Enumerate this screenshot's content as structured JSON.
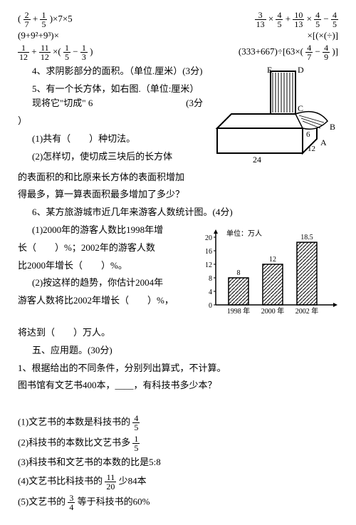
{
  "expr": {
    "e1a": "(",
    "e1b": ")×7×5",
    "e2": "(9+9²+9³)×",
    "e3a": "×",
    "e3b": "+",
    "e3c": "×",
    "e3d": "−",
    "e4": "×[(×(÷)]",
    "e5a": "(333+667)÷[63×(",
    "e5b": "−",
    "e5c": ")]",
    "e6a": "+",
    "e6b": "×(",
    "e6c": "−",
    "e6d": ")"
  },
  "f": {
    "f27": {
      "n": "2",
      "d": "7"
    },
    "f15": {
      "n": "1",
      "d": "5"
    },
    "f313": {
      "n": "3",
      "d": "13"
    },
    "f45": {
      "n": "4",
      "d": "5"
    },
    "f1013": {
      "n": "10",
      "d": "13"
    },
    "f47": {
      "n": "4",
      "d": "7"
    },
    "f49": {
      "n": "4",
      "d": "9"
    },
    "f112": {
      "n": "1",
      "d": "12"
    },
    "f1112": {
      "n": "11",
      "d": "12"
    },
    "f13": {
      "n": "1",
      "d": "3"
    },
    "f1120": {
      "n": "11",
      "d": "20"
    },
    "f34": {
      "n": "3",
      "d": "4"
    }
  },
  "q4": {
    "text": "4、求阴影部分的面积。（单位.厘米）(3分)",
    "labels": {
      "E": "E",
      "D": "D",
      "C": "C",
      "B": "B",
      "A": "A"
    }
  },
  "q5": {
    "lead": "5、有一个长方体，如右图.（单位:厘米）现将它\"切成\" 6",
    "dim24": "24",
    "dim12": "12",
    "dim6": "6",
    "points": "(3分",
    "p1": "(1)共有（　　）种切法。",
    "p2": "(2)怎样切，使切成三块后的长方体",
    "l3": "的表面积的和比原来长方体的表面积增加",
    "l4": "得最多，算一算表面积最多增加了多少？"
  },
  "q6": {
    "title": "6、某方旅游城市近几年来游客人数统计图。(4分)",
    "p1a": "(1)2000年的游客人数比1998年增",
    "p1b": "长（　　）%；2002年的游客人数",
    "p1c": "比2000年增长（　　）%。",
    "p2a": "(2)按这样的趋势，你估计2004年",
    "p2b": "游客人数将比2002年增长（　　）%，",
    "p2c": "将达到（　　）万人。"
  },
  "chart": {
    "unit": "单位：万人",
    "ymax": 20,
    "ytick": 4,
    "yticks": [
      "0",
      "4",
      "8",
      "12",
      "16",
      "20"
    ],
    "bars": [
      {
        "label": "1998 年",
        "value": 8,
        "text": "8"
      },
      {
        "label": "2000 年",
        "value": 12,
        "text": "12"
      },
      {
        "label": "2002 年",
        "value": 18.5,
        "text": "18.5"
      }
    ],
    "bar_color": "#ffffff",
    "hatch": true,
    "axis_color": "#000000"
  },
  "sec5": {
    "title": "五、应用题。(30分)",
    "q1": "1、根据给出的不同条件，分别列出算式，不计算。",
    "stem": "图书馆有文艺书400本，____，有科技书多少本？",
    "p1a": "(1)文艺书的本数是科技书的",
    "p2a": "(2)科技书的本数比文艺书多",
    "p3": "(3)科技书和文艺书的本数的比是5:8",
    "p4a": "(4)文艺书比科技书的",
    "p4b": "少84本",
    "p5a": "(5)文艺书的",
    "p5b": "等于科技书的60%"
  }
}
